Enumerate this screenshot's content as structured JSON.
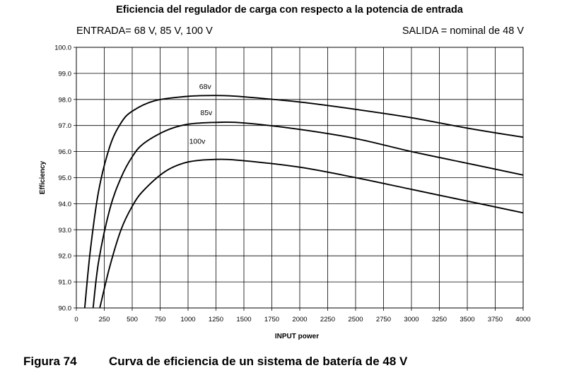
{
  "figure": {
    "label": "Figura 74",
    "caption": "Curva de eficiencia de un sistema de batería de 48 V"
  },
  "chart_data": {
    "type": "line",
    "title": "Eficiencia del regulador de carga con respecto a la potencia de entrada",
    "subtitle_left": "ENTRADA= 68 V, 85 V, 100 V",
    "subtitle_right": "SALIDA = nominal de 48 V",
    "xlabel": "INPUT power",
    "ylabel": "Efficiency",
    "xlim": [
      0,
      4000
    ],
    "ylim": [
      90,
      100
    ],
    "xticks": [
      0,
      250,
      500,
      750,
      1000,
      1250,
      1500,
      1750,
      2000,
      2250,
      2500,
      2750,
      3000,
      3250,
      3500,
      3750,
      4000
    ],
    "yticks": [
      "90.0",
      "91.0",
      "92.0",
      "93.0",
      "94.0",
      "95.0",
      "96.0",
      "97.0",
      "98.0",
      "99.0",
      "100.0"
    ],
    "grid": true,
    "series": [
      {
        "name": "68v",
        "label_at": [
          1100,
          98.4
        ],
        "points": [
          [
            75,
            90.0
          ],
          [
            125,
            92.2
          ],
          [
            200,
            94.5
          ],
          [
            300,
            96.2
          ],
          [
            400,
            97.1
          ],
          [
            500,
            97.55
          ],
          [
            700,
            97.95
          ],
          [
            1000,
            98.12
          ],
          [
            1300,
            98.15
          ],
          [
            1500,
            98.1
          ],
          [
            2000,
            97.9
          ],
          [
            2500,
            97.62
          ],
          [
            3000,
            97.3
          ],
          [
            3500,
            96.9
          ],
          [
            4000,
            96.55
          ]
        ]
      },
      {
        "name": "85v",
        "label_at": [
          1110,
          97.4
        ],
        "points": [
          [
            150,
            90.0
          ],
          [
            200,
            91.8
          ],
          [
            300,
            93.8
          ],
          [
            400,
            95.0
          ],
          [
            500,
            95.8
          ],
          [
            600,
            96.3
          ],
          [
            800,
            96.8
          ],
          [
            1000,
            97.05
          ],
          [
            1250,
            97.12
          ],
          [
            1500,
            97.1
          ],
          [
            2000,
            96.85
          ],
          [
            2500,
            96.5
          ],
          [
            3000,
            96.0
          ],
          [
            3500,
            95.55
          ],
          [
            4000,
            95.1
          ]
        ]
      },
      {
        "name": "100v",
        "label_at": [
          1010,
          96.3
        ],
        "points": [
          [
            210,
            90.0
          ],
          [
            300,
            91.6
          ],
          [
            400,
            93.0
          ],
          [
            500,
            93.9
          ],
          [
            600,
            94.5
          ],
          [
            800,
            95.25
          ],
          [
            1000,
            95.6
          ],
          [
            1250,
            95.7
          ],
          [
            1500,
            95.65
          ],
          [
            2000,
            95.4
          ],
          [
            2500,
            95.0
          ],
          [
            3000,
            94.55
          ],
          [
            3500,
            94.1
          ],
          [
            4000,
            93.65
          ]
        ]
      }
    ]
  }
}
